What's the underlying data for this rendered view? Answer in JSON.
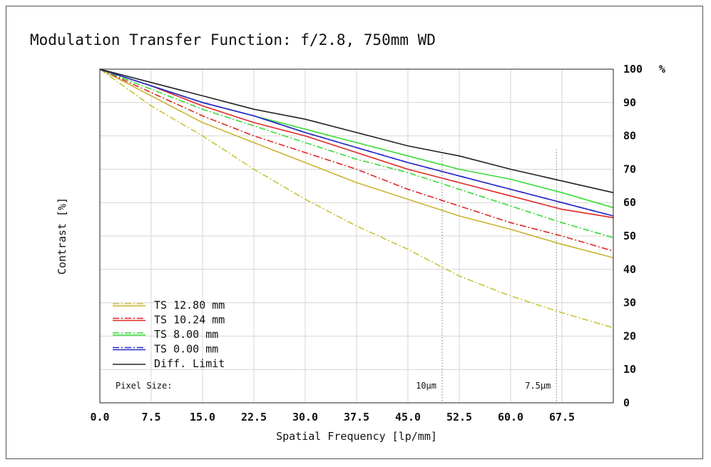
{
  "chart_data": {
    "type": "line",
    "title": "Modulation Transfer Function: f/2.8, 750mm WD",
    "xlabel": "Spatial Frequency [lp/mm]",
    "ylabel": "Contrast [%]",
    "y_unit": "%",
    "xlim": [
      0,
      75
    ],
    "ylim": [
      0,
      100
    ],
    "x_ticks": [
      "0.0",
      "7.5",
      "15.0",
      "22.5",
      "30.0",
      "37.5",
      "45.0",
      "52.5",
      "60.0",
      "67.5"
    ],
    "y_ticks": [
      "0",
      "10",
      "20",
      "30",
      "40",
      "50",
      "60",
      "70",
      "80",
      "90",
      "100"
    ],
    "grid": true,
    "legend_position": "bottom-left",
    "x": [
      0,
      7.5,
      15,
      22.5,
      30,
      37.5,
      45,
      52.5,
      60,
      67.5,
      75
    ],
    "series": [
      {
        "name": "TS 12.80 mm",
        "style": "dashdot",
        "color": "#c8c43c",
        "values": [
          100,
          89,
          80,
          70,
          61,
          53,
          46,
          38,
          32,
          27,
          22.5
        ]
      },
      {
        "name": "TS 12.80 mm",
        "style": "solid",
        "color": "#c8b432",
        "values": [
          100,
          92,
          84,
          78,
          72,
          66,
          61,
          56,
          52,
          47.5,
          43.5
        ]
      },
      {
        "name": "TS 10.24 mm",
        "style": "dashdot",
        "color": "#e02828",
        "values": [
          100,
          93,
          86,
          80,
          75,
          70,
          64,
          59,
          54,
          50,
          45.5
        ]
      },
      {
        "name": "TS 10.24 mm",
        "style": "solid",
        "color": "#e02828",
        "values": [
          100,
          95,
          89,
          84,
          80,
          75,
          70,
          66,
          62,
          58,
          55.5
        ]
      },
      {
        "name": "TS 8.00 mm",
        "style": "dashdot",
        "color": "#38dc38",
        "values": [
          100,
          94,
          88,
          83,
          78,
          73,
          69,
          64,
          59,
          54,
          49.5
        ]
      },
      {
        "name": "TS 8.00 mm",
        "style": "solid",
        "color": "#38dc38",
        "values": [
          100,
          95,
          90,
          86,
          82,
          78,
          74,
          70,
          67,
          63,
          58.5
        ]
      },
      {
        "name": "TS 0.00 mm",
        "style": "dashdot",
        "color": "#2828c8",
        "values": [
          100,
          95,
          90,
          86,
          81,
          76.5,
          72,
          68,
          64,
          60,
          56
        ]
      },
      {
        "name": "TS 0.00 mm",
        "style": "solid",
        "color": "#2828c8",
        "values": [
          100,
          95,
          90,
          86,
          81,
          76.5,
          72,
          68,
          64,
          60,
          56
        ]
      },
      {
        "name": "Diff. Limit",
        "style": "solid",
        "color": "#222222",
        "values": [
          100,
          96,
          92,
          88,
          85,
          81,
          77,
          74,
          70,
          66.5,
          63
        ]
      }
    ],
    "legend": [
      {
        "name": "TS 12.80 mm",
        "color": "#c8c43c"
      },
      {
        "name": "TS 10.24 mm",
        "color": "#e02828"
      },
      {
        "name": "TS 8.00 mm",
        "color": "#38dc38"
      },
      {
        "name": "TS 0.00 mm",
        "color": "#2828c8"
      },
      {
        "name": "Diff. Limit",
        "color": "#222222"
      }
    ],
    "pixel_size": {
      "label": "Pixel Size:",
      "markers": [
        {
          "label": "10μm",
          "x": 50
        },
        {
          "label": "7.5μm",
          "x": 66.7
        }
      ]
    }
  }
}
